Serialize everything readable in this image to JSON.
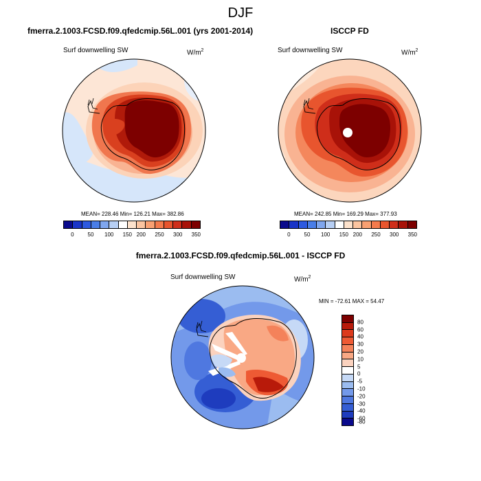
{
  "header": {
    "title": "DJF"
  },
  "panel_left": {
    "title": "fmerra.2.1003.FCSD.f09.qfedcmip.56L.001 (yrs 2001-2014)",
    "variable": "Surf downwelling SW",
    "units_base": "W/m",
    "units_exp": "2",
    "stats": "MEAN= 228.46  Min= 126.21  Max= 382.86"
  },
  "panel_right": {
    "title": "ISCCP FD",
    "variable": "Surf downwelling SW",
    "units_base": "W/m",
    "units_exp": "2",
    "stats": "MEAN= 242.85  Min= 169.29  Max= 377.93"
  },
  "panel_diff": {
    "title": "fmerra.2.1003.FCSD.f09.qfedcmip.56L.001 - ISCCP FD",
    "variable": "Surf downwelling SW",
    "units_base": "W/m",
    "units_exp": "2",
    "stats": "MIN = -72.61 MAX =  54.47"
  },
  "colorbar_abs": {
    "colors": [
      "#0a0a8c",
      "#1a35c8",
      "#2e5ae0",
      "#4a7ee8",
      "#7fa6ee",
      "#b7cff4",
      "#ffffff",
      "#fde2cc",
      "#fbc4a0",
      "#f9a072",
      "#f47a4c",
      "#e8552e",
      "#cf2e1a",
      "#a81208",
      "#7d0000"
    ],
    "tick_labels": [
      "0",
      "50",
      "100",
      "150",
      "200",
      "250",
      "300",
      "350"
    ]
  },
  "colorbar_diff": {
    "colors": [
      "#7d0000",
      "#b81a0a",
      "#dc3a1c",
      "#ee5a34",
      "#f4825a",
      "#f9a884",
      "#fbd2be",
      "#ffffff",
      "#c6d9f6",
      "#9bbcf0",
      "#7399ea",
      "#4f78e0",
      "#355ed4",
      "#1e3cbe",
      "#0a0a8c"
    ],
    "tick_labels": [
      "80",
      "60",
      "40",
      "30",
      "20",
      "10",
      "5",
      "0",
      "-5",
      "-10",
      "-20",
      "-30",
      "-40",
      "-60",
      "-80"
    ]
  }
}
